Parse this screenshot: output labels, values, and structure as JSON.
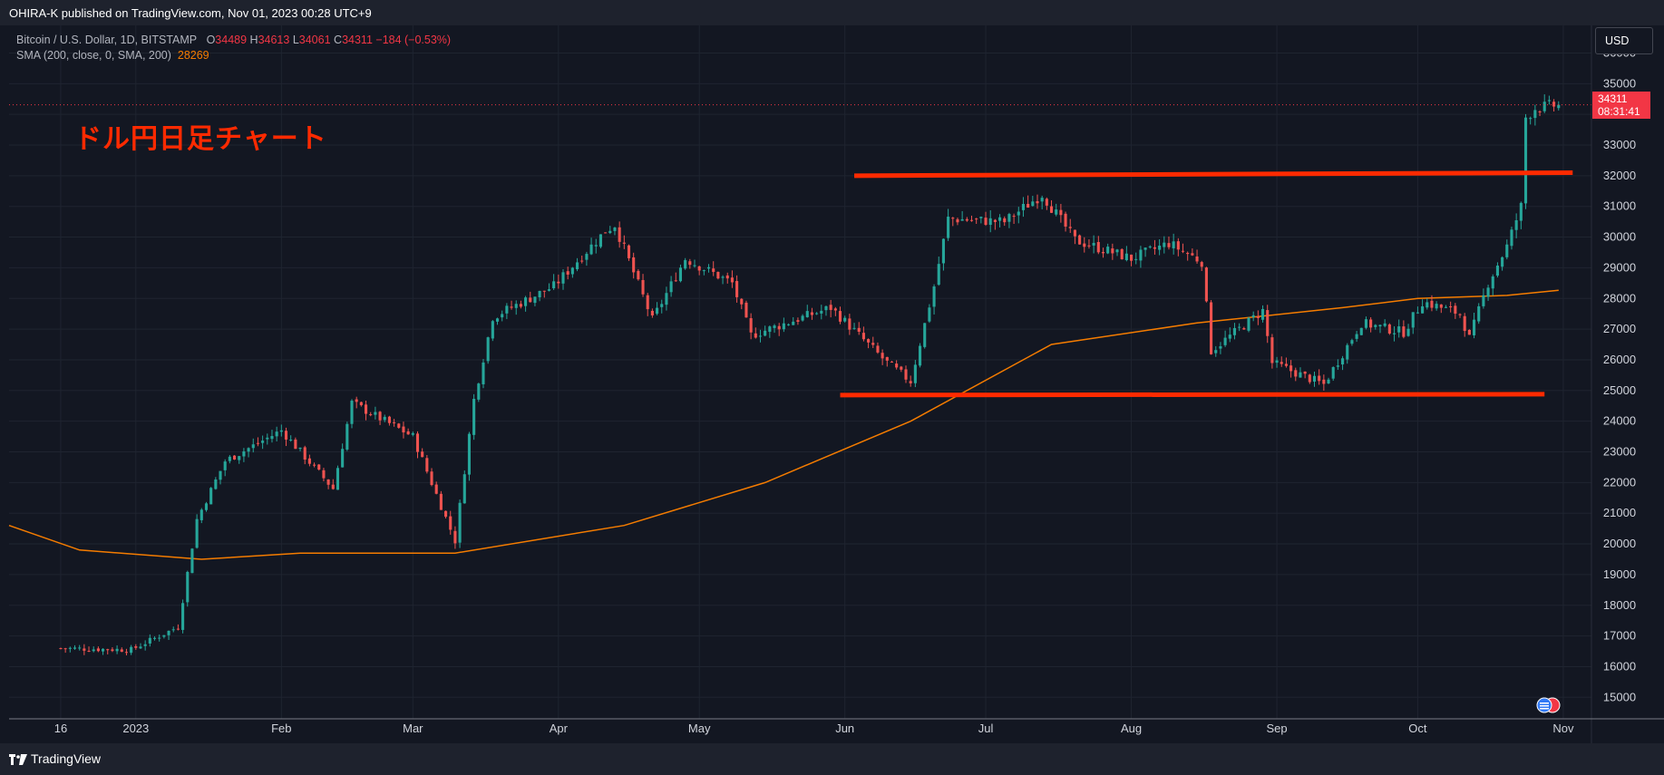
{
  "publisher_line": "OHIRA-K published on TradingView.com, Nov 01, 2023 00:28 UTC+9",
  "legend": {
    "symbol": "Bitcoin / U.S. Dollar, 1D, BITSTAMP",
    "o_label": "O",
    "o_value": "34489",
    "h_label": "H",
    "h_value": "34613",
    "l_label": "L",
    "l_value": "34061",
    "c_label": "C",
    "c_value": "34311",
    "change": "−184 (−0.53%)",
    "sma_label": "SMA (200, close, 0, SMA, 200)",
    "sma_value": "28269"
  },
  "annotation_text": "ドル円日足チャート",
  "currency": "USD",
  "last_price": "34311",
  "countdown": "08:31:41",
  "brand": "TradingView",
  "colors": {
    "up": "#26a69a",
    "down": "#ef5350",
    "sma": "#f57c00",
    "trendline": "#ff2a00",
    "last_price": "#f23645",
    "grid": "#1f2430"
  },
  "chart_data": {
    "type": "candlestick",
    "title": "Bitcoin / U.S. Dollar, 1D, BITSTAMP",
    "ylim": [
      14300,
      36900
    ],
    "y_ticks": [
      15000,
      16000,
      17000,
      18000,
      19000,
      20000,
      21000,
      22000,
      23000,
      24000,
      25000,
      26000,
      27000,
      28000,
      29000,
      30000,
      31000,
      32000,
      33000,
      34000,
      35000,
      36000
    ],
    "x_range": [
      "2022-12-05",
      "2023-11-07"
    ],
    "x_ticks": [
      {
        "label": "16",
        "date": "2022-12-16"
      },
      {
        "label": "2023",
        "date": "2023-01-01"
      },
      {
        "label": "Feb",
        "date": "2023-02-01"
      },
      {
        "label": "Mar",
        "date": "2023-03-01"
      },
      {
        "label": "Apr",
        "date": "2023-04-01"
      },
      {
        "label": "May",
        "date": "2023-05-01"
      },
      {
        "label": "Jun",
        "date": "2023-06-01"
      },
      {
        "label": "Jul",
        "date": "2023-07-01"
      },
      {
        "label": "Aug",
        "date": "2023-08-01"
      },
      {
        "label": "Sep",
        "date": "2023-09-01"
      },
      {
        "label": "Oct",
        "date": "2023-10-01"
      },
      {
        "label": "Nov",
        "date": "2023-11-01"
      }
    ],
    "price_key_points": [
      {
        "date": "2022-12-16",
        "close": 16600
      },
      {
        "date": "2022-12-31",
        "close": 16550
      },
      {
        "date": "2023-01-10",
        "close": 17300
      },
      {
        "date": "2023-01-14",
        "close": 20800
      },
      {
        "date": "2023-01-20",
        "close": 22700
      },
      {
        "date": "2023-02-01",
        "close": 23700
      },
      {
        "date": "2023-02-12",
        "close": 21800
      },
      {
        "date": "2023-02-16",
        "close": 24600
      },
      {
        "date": "2023-03-01",
        "close": 23500
      },
      {
        "date": "2023-03-10",
        "close": 20100
      },
      {
        "date": "2023-03-14",
        "close": 24700
      },
      {
        "date": "2023-03-18",
        "close": 27400
      },
      {
        "date": "2023-03-31",
        "close": 28400
      },
      {
        "date": "2023-04-11",
        "close": 30200
      },
      {
        "date": "2023-04-13",
        "close": 30400
      },
      {
        "date": "2023-04-21",
        "close": 27300
      },
      {
        "date": "2023-04-28",
        "close": 29300
      },
      {
        "date": "2023-05-08",
        "close": 28500
      },
      {
        "date": "2023-05-12",
        "close": 26800
      },
      {
        "date": "2023-05-29",
        "close": 27700
      },
      {
        "date": "2023-06-10",
        "close": 25900
      },
      {
        "date": "2023-06-15",
        "close": 25300
      },
      {
        "date": "2023-06-20",
        "close": 28400
      },
      {
        "date": "2023-06-23",
        "close": 30600
      },
      {
        "date": "2023-07-05",
        "close": 30500
      },
      {
        "date": "2023-07-13",
        "close": 31400
      },
      {
        "date": "2023-07-20",
        "close": 29900
      },
      {
        "date": "2023-08-01",
        "close": 29300
      },
      {
        "date": "2023-08-09",
        "close": 29800
      },
      {
        "date": "2023-08-16",
        "close": 29200
      },
      {
        "date": "2023-08-18",
        "close": 26300
      },
      {
        "date": "2023-08-29",
        "close": 27600
      },
      {
        "date": "2023-08-31",
        "close": 25900
      },
      {
        "date": "2023-09-11",
        "close": 25200
      },
      {
        "date": "2023-09-19",
        "close": 27200
      },
      {
        "date": "2023-09-28",
        "close": 26900
      },
      {
        "date": "2023-10-02",
        "close": 27900
      },
      {
        "date": "2023-10-10",
        "close": 27500
      },
      {
        "date": "2023-10-12",
        "close": 26700
      },
      {
        "date": "2023-10-16",
        "close": 28500
      },
      {
        "date": "2023-10-20",
        "close": 29700
      },
      {
        "date": "2023-10-23",
        "close": 31000
      },
      {
        "date": "2023-10-24",
        "close": 33900
      },
      {
        "date": "2023-10-26",
        "close": 34200
      },
      {
        "date": "2023-10-31",
        "close": 34311
      }
    ],
    "sma200_key_points": [
      {
        "date": "2022-12-05",
        "value": 20600
      },
      {
        "date": "2022-12-20",
        "value": 19800
      },
      {
        "date": "2023-01-15",
        "value": 19500
      },
      {
        "date": "2023-02-05",
        "value": 19700
      },
      {
        "date": "2023-03-10",
        "value": 19700
      },
      {
        "date": "2023-04-15",
        "value": 20600
      },
      {
        "date": "2023-05-15",
        "value": 22000
      },
      {
        "date": "2023-06-15",
        "value": 24000
      },
      {
        "date": "2023-07-15",
        "value": 26500
      },
      {
        "date": "2023-08-15",
        "value": 27200
      },
      {
        "date": "2023-09-15",
        "value": 27700
      },
      {
        "date": "2023-10-01",
        "value": 28000
      },
      {
        "date": "2023-10-20",
        "value": 28100
      },
      {
        "date": "2023-10-31",
        "value": 28269
      }
    ],
    "trendlines": [
      {
        "from_date": "2023-06-03",
        "to_date": "2023-11-03",
        "from_value": 32000,
        "to_value": 32100
      },
      {
        "from_date": "2023-05-31",
        "to_date": "2023-10-28",
        "from_value": 24850,
        "to_value": 24880
      }
    ],
    "last_price_line": 34311
  }
}
